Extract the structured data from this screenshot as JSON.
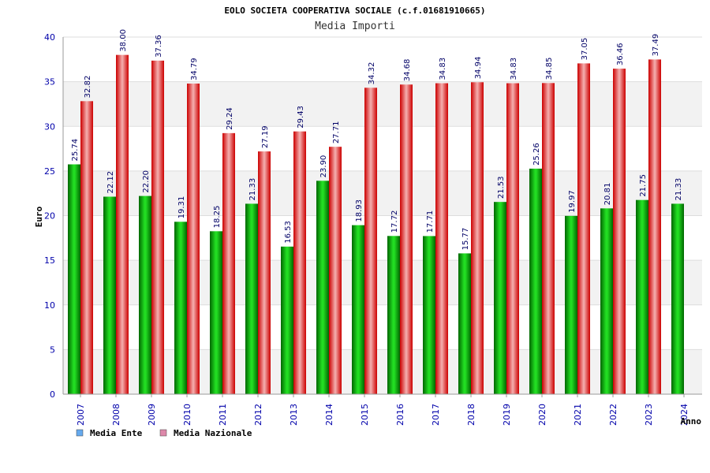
{
  "chart_data": {
    "type": "bar",
    "title": "EOLO SOCIETA COOPERATIVA SOCIALE (c.f.01681910665)",
    "subtitle": "Media Importi",
    "xlabel": "Anno",
    "ylabel": "Euro",
    "ylim": [
      0,
      40
    ],
    "yticks": [
      0,
      5,
      10,
      15,
      20,
      25,
      30,
      35,
      40
    ],
    "grid": true,
    "legend_position": "bottom-left",
    "categories": [
      "2007",
      "2008",
      "2009",
      "2010",
      "2011",
      "2012",
      "2013",
      "2014",
      "2015",
      "2016",
      "2017",
      "2018",
      "2019",
      "2020",
      "2021",
      "2022",
      "2023",
      "2024"
    ],
    "series": [
      {
        "name": "Media Ente",
        "color": "#11aa11",
        "legend_color": "#66aaee",
        "values": [
          25.74,
          22.12,
          22.2,
          19.31,
          18.25,
          21.33,
          16.53,
          23.9,
          18.93,
          17.72,
          17.71,
          15.77,
          21.53,
          25.26,
          19.97,
          20.81,
          21.75,
          21.33
        ],
        "labels": [
          "25.74",
          "22.12",
          "22.20",
          "19.31",
          "18.25",
          "21.33",
          "16.53",
          "23.90",
          "18.93",
          "17.72",
          "17.71",
          "15.77",
          "21.53",
          "25.26",
          "19.97",
          "20.81",
          "21.75",
          "21.33"
        ]
      },
      {
        "name": "Media Nazionale",
        "color": "#ee2222",
        "legend_color": "#dd88aa",
        "values": [
          32.82,
          38.0,
          37.36,
          34.79,
          29.24,
          27.19,
          29.43,
          27.71,
          34.32,
          34.68,
          34.83,
          34.94,
          34.83,
          34.85,
          37.05,
          36.46,
          37.49,
          null
        ],
        "labels": [
          "32.82",
          "38.00",
          "37.36",
          "34.79",
          "29.24",
          "27.19",
          "29.43",
          "27.71",
          "34.32",
          "34.68",
          "34.83",
          "34.94",
          "34.83",
          "34.85",
          "37.05",
          "36.46",
          "37.49",
          ""
        ]
      }
    ]
  }
}
